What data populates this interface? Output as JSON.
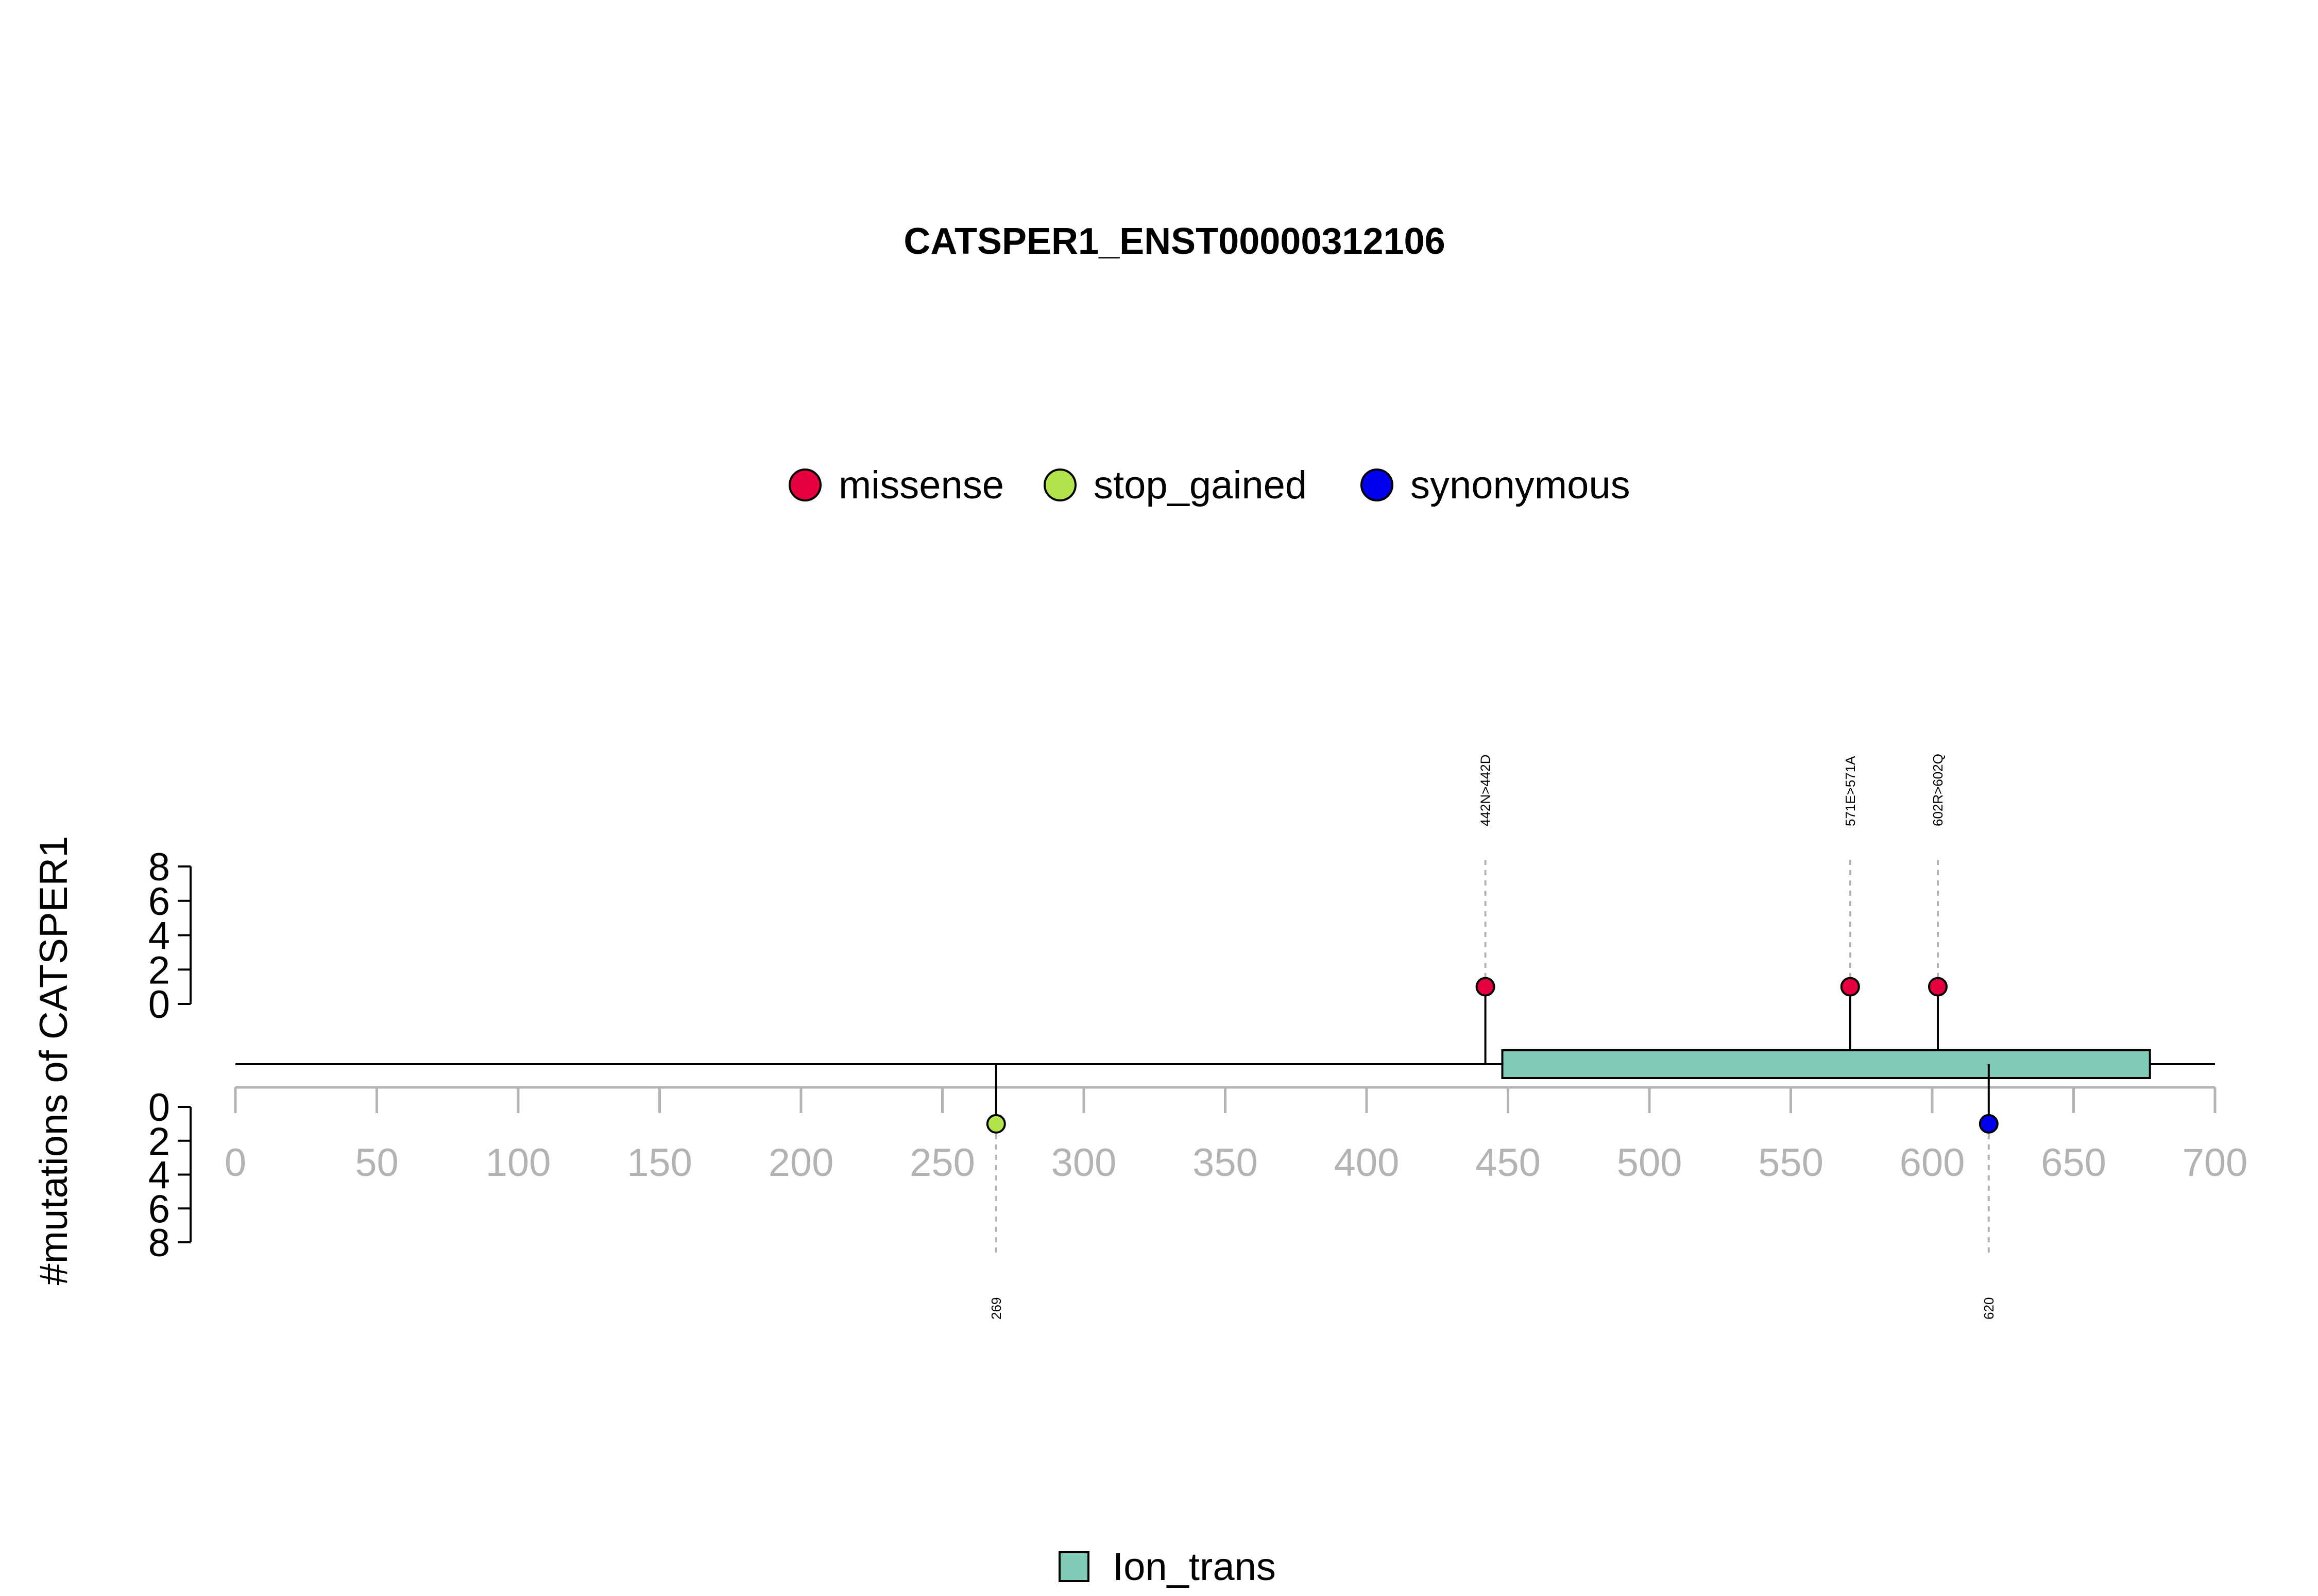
{
  "chart_data": {
    "type": "lollipop",
    "title": "CATSPER1_ENST00000312106",
    "ylabel": "#mutations of CATSPER1",
    "x_ticks": [
      0,
      50,
      100,
      150,
      200,
      250,
      300,
      350,
      400,
      450,
      500,
      550,
      600,
      650,
      700
    ],
    "xlim": [
      0,
      700
    ],
    "y_ticks_top": [
      "8",
      "6",
      "4",
      "2",
      "0"
    ],
    "y_ticks_bottom": [
      "0",
      "2",
      "4",
      "6",
      "8"
    ],
    "ylim": [
      0,
      8
    ],
    "protein_length": 700,
    "legend": [
      {
        "name": "missense",
        "color": "#e5003d"
      },
      {
        "name": "stop_gained",
        "color": "#b2e34a"
      },
      {
        "name": "synonymous",
        "color": "#0000ee"
      }
    ],
    "domains": [
      {
        "name": "Ion_trans",
        "start": 448,
        "end": 677,
        "color": "#7fcbb6"
      }
    ],
    "mutations": [
      {
        "position": 442,
        "label": "442N>442D",
        "type": "missense",
        "count": 1,
        "side": "top"
      },
      {
        "position": 571,
        "label": "571E>571A",
        "type": "missense",
        "count": 1,
        "side": "top"
      },
      {
        "position": 602,
        "label": "602R>602Q",
        "type": "missense",
        "count": 1,
        "side": "top"
      },
      {
        "position": 269,
        "label": "269",
        "type": "stop_gained",
        "count": 1,
        "side": "bottom"
      },
      {
        "position": 620,
        "label": "620",
        "type": "synonymous",
        "count": 1,
        "side": "bottom"
      }
    ]
  }
}
